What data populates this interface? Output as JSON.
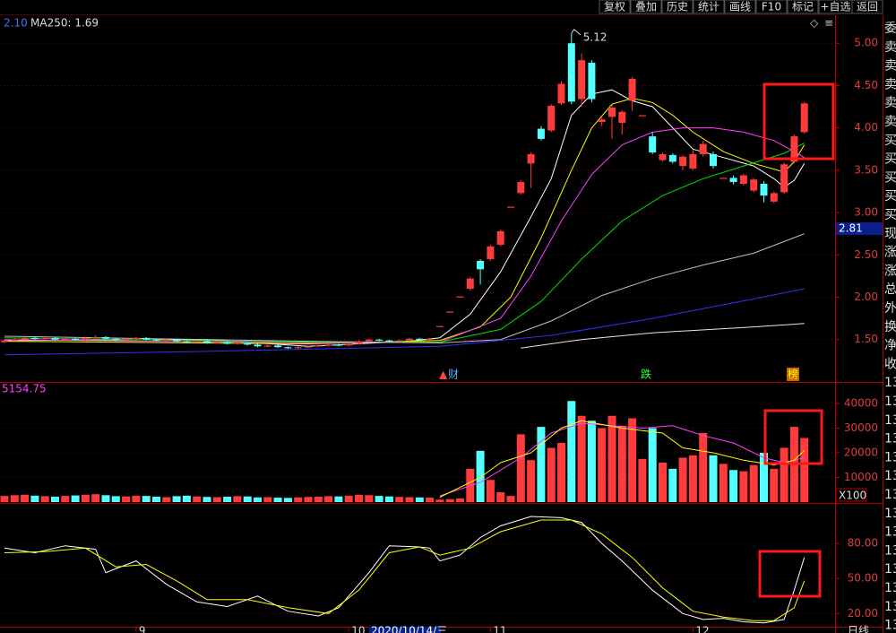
{
  "toolbar": [
    "复权",
    "叠加",
    "历史",
    "统计",
    "画线",
    "F10",
    "标记",
    "+自选",
    "返回"
  ],
  "side_panel": [
    "委",
    "卖",
    "卖",
    "卖",
    "卖",
    "卖",
    "买",
    "买",
    "买",
    "买",
    "买",
    "现",
    "涨",
    "涨",
    "总",
    "外",
    "换",
    "净",
    "收",
    "13",
    "13",
    "13",
    "13",
    "13",
    "13",
    "13",
    "13",
    "13",
    "13",
    "13",
    "13",
    "13",
    "13"
  ],
  "period": "日线",
  "chart_data": [
    {
      "type": "candlestick",
      "legend": [
        "2.10",
        "MA250: 1.69"
      ],
      "ylim": [
        1.01,
        5.32
      ],
      "yticks": [
        {
          "value": 1.5,
          "label": "1.50"
        },
        {
          "value": 2,
          "label": "2.00"
        },
        {
          "value": 2.5,
          "label": "2.50"
        },
        {
          "value": 3,
          "label": "3.00"
        },
        {
          "value": 3.5,
          "label": "3.50"
        },
        {
          "value": 4,
          "label": "4.00"
        },
        {
          "value": 4.5,
          "label": "4.50"
        },
        {
          "value": 5,
          "label": "5.00"
        }
      ],
      "grid": true,
      "up_color": "#ff3b3b",
      "down_color": "#54ffff",
      "peak_label": 5.12,
      "cursor_price": 2.81,
      "markers": [
        "财",
        "跌",
        "榜"
      ],
      "ohlc": [
        [
          1.47,
          1.5,
          1.46,
          1.49
        ],
        [
          1.49,
          1.52,
          1.48,
          1.5
        ],
        [
          1.5,
          1.53,
          1.49,
          1.52
        ],
        [
          1.52,
          1.54,
          1.5,
          1.51
        ],
        [
          1.51,
          1.53,
          1.5,
          1.52
        ],
        [
          1.52,
          1.53,
          1.49,
          1.5
        ],
        [
          1.5,
          1.52,
          1.49,
          1.51
        ],
        [
          1.51,
          1.52,
          1.49,
          1.5
        ],
        [
          1.5,
          1.53,
          1.49,
          1.52
        ],
        [
          1.52,
          1.55,
          1.51,
          1.53
        ],
        [
          1.53,
          1.54,
          1.5,
          1.51
        ],
        [
          1.51,
          1.52,
          1.48,
          1.5
        ],
        [
          1.5,
          1.52,
          1.49,
          1.51
        ],
        [
          1.51,
          1.53,
          1.5,
          1.52
        ],
        [
          1.52,
          1.53,
          1.49,
          1.5
        ],
        [
          1.5,
          1.51,
          1.48,
          1.49
        ],
        [
          1.49,
          1.51,
          1.48,
          1.5
        ],
        [
          1.5,
          1.51,
          1.47,
          1.48
        ],
        [
          1.48,
          1.49,
          1.46,
          1.47
        ],
        [
          1.47,
          1.49,
          1.46,
          1.48
        ],
        [
          1.48,
          1.49,
          1.45,
          1.46
        ],
        [
          1.46,
          1.48,
          1.45,
          1.47
        ],
        [
          1.47,
          1.48,
          1.44,
          1.45
        ],
        [
          1.45,
          1.47,
          1.44,
          1.46
        ],
        [
          1.46,
          1.47,
          1.43,
          1.44
        ],
        [
          1.44,
          1.45,
          1.41,
          1.42
        ],
        [
          1.42,
          1.44,
          1.41,
          1.43
        ],
        [
          1.43,
          1.44,
          1.4,
          1.41
        ],
        [
          1.41,
          1.42,
          1.39,
          1.4
        ],
        [
          1.4,
          1.42,
          1.39,
          1.41
        ],
        [
          1.41,
          1.43,
          1.4,
          1.42
        ],
        [
          1.42,
          1.44,
          1.41,
          1.43
        ],
        [
          1.43,
          1.45,
          1.42,
          1.44
        ],
        [
          1.44,
          1.45,
          1.42,
          1.43
        ],
        [
          1.43,
          1.46,
          1.42,
          1.45
        ],
        [
          1.45,
          1.49,
          1.44,
          1.48
        ],
        [
          1.48,
          1.51,
          1.47,
          1.5
        ],
        [
          1.5,
          1.51,
          1.48,
          1.49
        ],
        [
          1.49,
          1.5,
          1.47,
          1.48
        ],
        [
          1.48,
          1.5,
          1.47,
          1.49
        ],
        [
          1.49,
          1.52,
          1.48,
          1.51
        ],
        [
          1.51,
          1.52,
          1.49,
          1.5
        ],
        [
          1.5,
          1.52,
          1.49,
          1.51
        ],
        [
          1.66,
          1.66,
          1.66,
          1.66
        ],
        [
          1.83,
          1.83,
          1.83,
          1.83
        ],
        [
          2.01,
          2.01,
          2.01,
          2.01
        ],
        [
          2.1,
          2.24,
          2.08,
          2.22
        ],
        [
          2.43,
          2.45,
          2.15,
          2.33
        ],
        [
          2.45,
          2.62,
          2.43,
          2.6
        ],
        [
          2.62,
          2.8,
          2.6,
          2.78
        ],
        [
          3.07,
          3.07,
          3.07,
          3.07
        ],
        [
          3.23,
          3.38,
          3.21,
          3.36
        ],
        [
          3.58,
          3.71,
          3.29,
          3.69
        ],
        [
          3.99,
          4.02,
          3.85,
          3.87
        ],
        [
          3.97,
          4.28,
          3.95,
          4.26
        ],
        [
          4.29,
          4.55,
          4.27,
          4.52
        ],
        [
          5.0,
          5.12,
          4.28,
          4.31
        ],
        [
          4.34,
          4.88,
          4.25,
          4.8
        ],
        [
          4.77,
          4.8,
          4.3,
          4.34
        ],
        [
          4.07,
          4.14,
          4.02,
          4.1
        ],
        [
          4.13,
          4.27,
          3.87,
          4.24
        ],
        [
          4.06,
          4.21,
          3.92,
          4.19
        ],
        [
          4.32,
          4.6,
          4.2,
          4.58
        ],
        [
          4.15,
          4.15,
          4.15,
          4.15
        ],
        [
          3.9,
          3.95,
          3.69,
          3.71
        ],
        [
          3.62,
          3.71,
          3.6,
          3.69
        ],
        [
          3.68,
          3.7,
          3.58,
          3.6
        ],
        [
          3.55,
          3.68,
          3.5,
          3.66
        ],
        [
          3.52,
          3.74,
          3.5,
          3.69
        ],
        [
          3.69,
          3.85,
          3.66,
          3.81
        ],
        [
          3.69,
          3.72,
          3.52,
          3.55
        ],
        [
          3.41,
          3.41,
          3.41,
          3.41
        ],
        [
          3.41,
          3.44,
          3.33,
          3.36
        ],
        [
          3.34,
          3.46,
          3.32,
          3.44
        ],
        [
          3.26,
          3.41,
          3.24,
          3.39
        ],
        [
          3.34,
          3.37,
          3.12,
          3.2
        ],
        [
          3.13,
          3.25,
          3.11,
          3.23
        ],
        [
          3.24,
          3.59,
          3.22,
          3.57
        ],
        [
          3.6,
          3.92,
          3.58,
          3.9
        ],
        [
          3.95,
          4.31,
          3.93,
          4.29
        ]
      ],
      "series": [
        {
          "color": "#ffffff",
          "x": [
            0,
            20,
            30,
            40,
            43,
            46,
            49,
            52,
            54,
            56,
            58,
            60,
            62,
            64,
            66,
            68,
            71,
            74,
            76,
            77,
            78,
            79
          ],
          "values": [
            1.49,
            1.5,
            1.42,
            1.48,
            1.52,
            1.8,
            2.3,
            2.95,
            3.4,
            4.15,
            4.4,
            4.45,
            4.32,
            4.25,
            4.0,
            3.75,
            3.65,
            3.55,
            3.4,
            3.3,
            3.38,
            3.58
          ]
        },
        {
          "color": "#ffff00",
          "x": [
            0,
            30,
            43,
            47,
            50,
            53,
            56,
            58,
            60,
            62,
            64,
            66,
            68,
            71,
            74,
            77,
            78,
            79
          ],
          "values": [
            1.48,
            1.45,
            1.49,
            1.65,
            2.0,
            2.7,
            3.5,
            4.0,
            4.28,
            4.35,
            4.3,
            4.15,
            3.95,
            3.72,
            3.58,
            3.48,
            3.6,
            3.8
          ]
        },
        {
          "color": "#ff40ff",
          "x": [
            0,
            30,
            43,
            49,
            52,
            55,
            58,
            61,
            64,
            67,
            70,
            73,
            76,
            78,
            79
          ],
          "values": [
            1.5,
            1.46,
            1.47,
            1.75,
            2.25,
            2.9,
            3.45,
            3.8,
            3.95,
            4.0,
            4.0,
            3.95,
            3.85,
            3.72,
            3.65
          ]
        },
        {
          "color": "#00e000",
          "x": [
            0,
            30,
            43,
            49,
            53,
            57,
            61,
            65,
            69,
            73,
            77,
            79
          ],
          "values": [
            1.52,
            1.47,
            1.47,
            1.62,
            1.95,
            2.45,
            2.9,
            3.2,
            3.4,
            3.55,
            3.7,
            3.82
          ]
        },
        {
          "color": "#c0c0c0",
          "x": [
            0,
            30,
            43,
            49,
            54,
            59,
            64,
            69,
            74,
            79
          ],
          "values": [
            1.54,
            1.48,
            1.46,
            1.5,
            1.72,
            2.02,
            2.22,
            2.38,
            2.52,
            2.75
          ]
        },
        {
          "color": "#3030ff",
          "x": [
            0,
            20,
            43,
            54,
            64,
            74,
            79
          ],
          "values": [
            1.32,
            1.36,
            1.42,
            1.55,
            1.75,
            1.98,
            2.1
          ]
        },
        {
          "color": "#e8e8e8",
          "x": [
            51,
            57,
            64,
            74,
            79
          ],
          "values": [
            1.4,
            1.5,
            1.58,
            1.65,
            1.69
          ]
        }
      ]
    },
    {
      "type": "bar",
      "legend": 5154.75,
      "unit": "X100",
      "ylim": [
        0,
        48000
      ],
      "yticks": [
        10000,
        20000,
        30000,
        40000
      ],
      "grid": true,
      "values": [
        2500,
        2800,
        3000,
        2600,
        2400,
        2200,
        2500,
        2700,
        3000,
        3200,
        2800,
        2400,
        2300,
        2600,
        2500,
        2200,
        2000,
        2400,
        2600,
        2300,
        2100,
        2000,
        2200,
        2400,
        2300,
        1900,
        2000,
        1800,
        1700,
        1900,
        2100,
        2200,
        2400,
        2300,
        2600,
        3000,
        2800,
        2500,
        2300,
        2100,
        2000,
        1900,
        1800,
        1000,
        1200,
        1500,
        13500,
        20800,
        9000,
        4000,
        2500,
        27500,
        17000,
        30500,
        22000,
        24000,
        41000,
        35000,
        33000,
        30000,
        35000,
        31000,
        34000,
        17500,
        30000,
        16000,
        13500,
        18000,
        19000,
        28000,
        19000,
        15500,
        13000,
        12500,
        15000,
        20000,
        13500,
        22000,
        30500,
        26000
      ],
      "series": [
        {
          "color": "#ff40ff",
          "x": [
            43,
            47,
            51,
            54,
            57,
            60,
            63,
            66,
            69,
            72,
            75,
            77,
            79
          ],
          "values": [
            2500,
            8000,
            18000,
            28000,
            32000,
            31000,
            30000,
            31000,
            27000,
            24000,
            18000,
            16000,
            18000
          ]
        },
        {
          "color": "#ffff00",
          "x": [
            43,
            47,
            49,
            52,
            55,
            57,
            61,
            65,
            67,
            70,
            73,
            76,
            78,
            79
          ],
          "values": [
            2000,
            10000,
            16000,
            20000,
            30000,
            33000,
            30000,
            28000,
            22000,
            20000,
            17000,
            15000,
            17000,
            21000
          ]
        }
      ]
    },
    {
      "type": "line",
      "ylim": [
        8,
        113
      ],
      "yticks": [
        {
          "value": 20,
          "label": "20.00"
        },
        {
          "value": 50,
          "label": "50.00"
        },
        {
          "value": 80,
          "label": "80.00"
        }
      ],
      "grid": true,
      "cursor_date": "2020/10/14/三",
      "categories": [
        null,
        null,
        null,
        null,
        null,
        null,
        null,
        null,
        null,
        null,
        null,
        null,
        null,
        "9",
        null,
        null,
        null,
        null,
        null,
        null,
        null,
        null,
        null,
        null,
        null,
        null,
        null,
        null,
        null,
        null,
        null,
        null,
        null,
        null,
        "10",
        null,
        null,
        null,
        null,
        null,
        null,
        null,
        null,
        null,
        null,
        null,
        null,
        null,
        "11",
        null,
        null,
        null,
        null,
        null,
        null,
        null,
        null,
        null,
        null,
        null,
        null,
        null,
        null,
        null,
        null,
        null,
        null,
        null,
        "12",
        null,
        null,
        null,
        null,
        null,
        null,
        null,
        null,
        null,
        null,
        null
      ],
      "series": [
        {
          "color": "#ffffff",
          "x": [
            0,
            3,
            6,
            9,
            10,
            13,
            16,
            19,
            22,
            25,
            28,
            31,
            33,
            36,
            38,
            41,
            42,
            43,
            45,
            47,
            49,
            52,
            55,
            57,
            59,
            61,
            64,
            67,
            69,
            71,
            73,
            75,
            77,
            78,
            79
          ],
          "values": [
            76,
            72,
            78,
            75,
            55,
            65,
            45,
            30,
            26,
            35,
            22,
            18,
            25,
            55,
            78,
            77,
            76,
            65,
            70,
            85,
            95,
            103,
            102,
            98,
            80,
            65,
            40,
            20,
            15,
            16,
            13,
            12,
            15,
            40,
            68
          ]
        },
        {
          "color": "#ffff00",
          "x": [
            0,
            4,
            8,
            11,
            14,
            17,
            20,
            24,
            28,
            32,
            35,
            38,
            41,
            43,
            46,
            49,
            53,
            56,
            59,
            62,
            65,
            68,
            71,
            74,
            76,
            78,
            79
          ],
          "values": [
            72,
            73,
            76,
            60,
            62,
            48,
            32,
            32,
            25,
            20,
            40,
            72,
            77,
            70,
            76,
            90,
            100,
            100,
            88,
            68,
            42,
            22,
            17,
            14,
            14,
            25,
            48
          ]
        }
      ]
    }
  ]
}
